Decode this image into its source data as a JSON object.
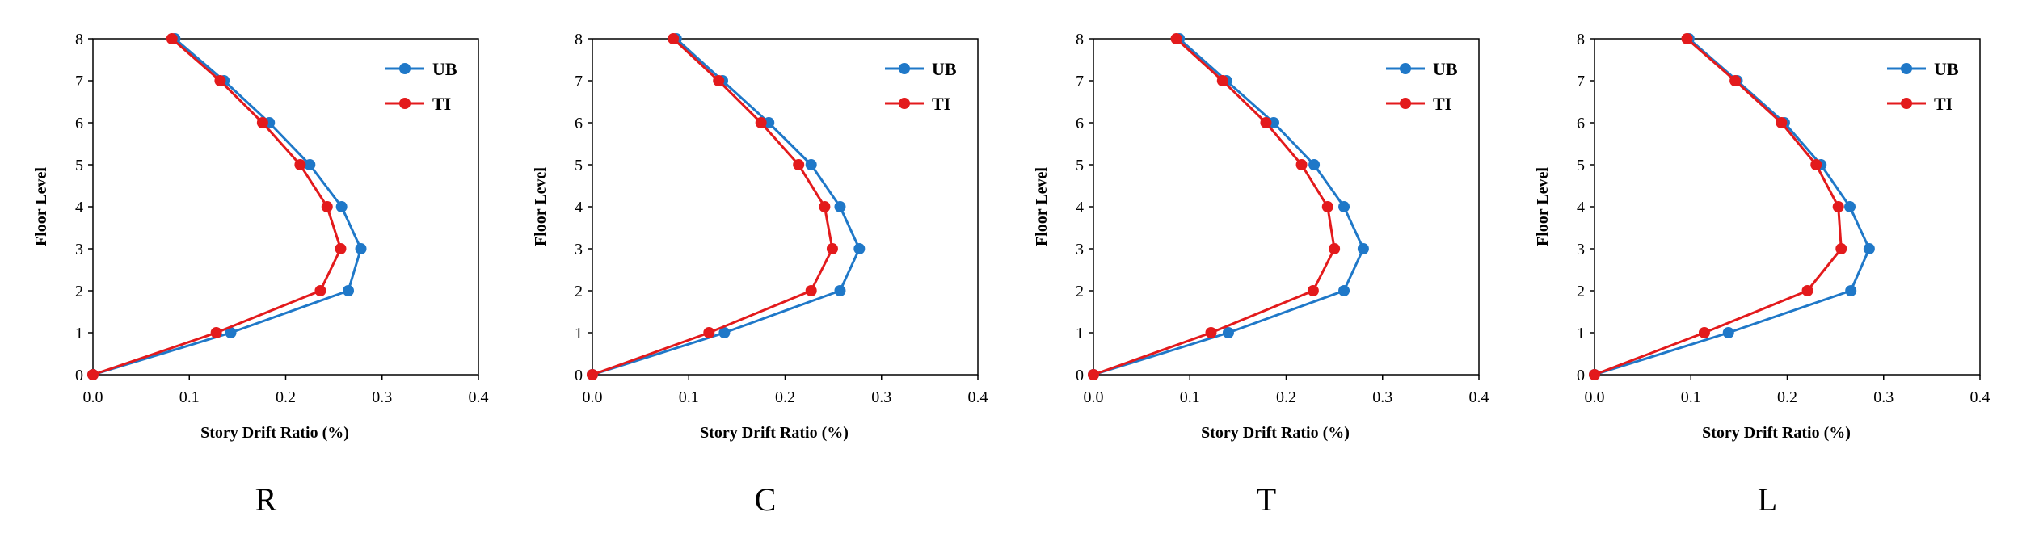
{
  "colors": {
    "UB": "#1f78c8",
    "TI": "#e31a1c",
    "axis": "#000000"
  },
  "chart_data": [
    {
      "type": "line",
      "caption": "R",
      "xlabel": "Story Drift Ratio (%)",
      "ylabel": "Floor Level",
      "xlim": [
        0,
        0.4
      ],
      "ylim": [
        0,
        8
      ],
      "x_ticks": [
        "0.0",
        "0.1",
        "0.2",
        "0.3",
        "0.4"
      ],
      "y_ticks": [
        "0",
        "1",
        "2",
        "3",
        "4",
        "5",
        "6",
        "7",
        "8"
      ],
      "legend": [
        "UB",
        "TI"
      ],
      "series": [
        {
          "name": "UB",
          "floors": [
            0,
            1,
            2,
            3,
            4,
            5,
            6,
            7,
            8
          ],
          "values": [
            0,
            0.143,
            0.265,
            0.278,
            0.258,
            0.225,
            0.183,
            0.136,
            0.085
          ]
        },
        {
          "name": "TI",
          "floors": [
            0,
            1,
            2,
            3,
            4,
            5,
            6,
            7,
            8
          ],
          "values": [
            0,
            0.128,
            0.236,
            0.257,
            0.243,
            0.215,
            0.176,
            0.132,
            0.082
          ]
        }
      ]
    },
    {
      "type": "line",
      "caption": "C",
      "xlabel": "Story Drift Ratio (%)",
      "ylabel": "Floor Level",
      "xlim": [
        0,
        0.4
      ],
      "ylim": [
        0,
        8
      ],
      "x_ticks": [
        "0.0",
        "0.1",
        "0.2",
        "0.3",
        "0.4"
      ],
      "y_ticks": [
        "0",
        "1",
        "2",
        "3",
        "4",
        "5",
        "6",
        "7",
        "8"
      ],
      "legend": [
        "UB",
        "TI"
      ],
      "series": [
        {
          "name": "UB",
          "floors": [
            0,
            1,
            2,
            3,
            4,
            5,
            6,
            7,
            8
          ],
          "values": [
            0,
            0.137,
            0.257,
            0.277,
            0.257,
            0.227,
            0.183,
            0.135,
            0.087
          ]
        },
        {
          "name": "TI",
          "floors": [
            0,
            1,
            2,
            3,
            4,
            5,
            6,
            7,
            8
          ],
          "values": [
            0,
            0.121,
            0.227,
            0.249,
            0.241,
            0.214,
            0.175,
            0.131,
            0.084
          ]
        }
      ]
    },
    {
      "type": "line",
      "caption": "T",
      "xlabel": "Story Drift Ratio (%)",
      "ylabel": "Floor Level",
      "xlim": [
        0,
        0.4
      ],
      "ylim": [
        0,
        8
      ],
      "x_ticks": [
        "0.0",
        "0.1",
        "0.2",
        "0.3",
        "0.4"
      ],
      "y_ticks": [
        "0",
        "1",
        "2",
        "3",
        "4",
        "5",
        "6",
        "7",
        "8"
      ],
      "legend": [
        "UB",
        "TI"
      ],
      "series": [
        {
          "name": "UB",
          "floors": [
            0,
            1,
            2,
            3,
            4,
            5,
            6,
            7,
            8
          ],
          "values": [
            0,
            0.14,
            0.26,
            0.28,
            0.26,
            0.229,
            0.187,
            0.138,
            0.089
          ]
        },
        {
          "name": "TI",
          "floors": [
            0,
            1,
            2,
            3,
            4,
            5,
            6,
            7,
            8
          ],
          "values": [
            0,
            0.122,
            0.228,
            0.25,
            0.243,
            0.216,
            0.179,
            0.134,
            0.086
          ]
        }
      ]
    },
    {
      "type": "line",
      "caption": "L",
      "xlabel": "Story Drift Ratio (%)",
      "ylabel": "Floor Level",
      "xlim": [
        0,
        0.4
      ],
      "ylim": [
        0,
        8
      ],
      "x_ticks": [
        "0.0",
        "0.1",
        "0.2",
        "0.3",
        "0.4"
      ],
      "y_ticks": [
        "0",
        "1",
        "2",
        "3",
        "4",
        "5",
        "6",
        "7",
        "8"
      ],
      "legend": [
        "UB",
        "TI"
      ],
      "series": [
        {
          "name": "UB",
          "floors": [
            0,
            1,
            2,
            3,
            4,
            5,
            6,
            7,
            8
          ],
          "values": [
            0,
            0.139,
            0.266,
            0.285,
            0.265,
            0.235,
            0.197,
            0.148,
            0.098
          ]
        },
        {
          "name": "TI",
          "floors": [
            0,
            1,
            2,
            3,
            4,
            5,
            6,
            7,
            8
          ],
          "values": [
            0,
            0.114,
            0.221,
            0.256,
            0.253,
            0.23,
            0.194,
            0.146,
            0.096
          ]
        }
      ]
    }
  ]
}
